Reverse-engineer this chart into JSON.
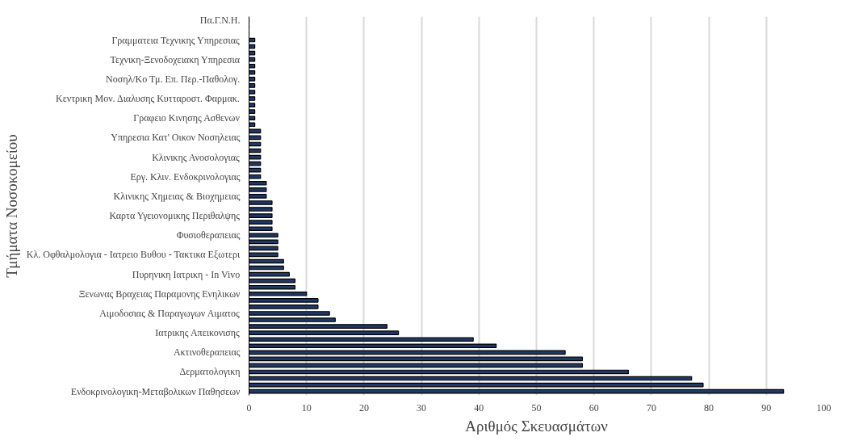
{
  "chart_data": {
    "type": "bar",
    "orientation": "horizontal",
    "xlabel": "Αριθμός Σκευασμάτων",
    "ylabel": "Τμήματα Νοσοκομείου",
    "categories": [
      "Πα.Γ.Ν.Η.",
      null,
      null,
      "Γραμματεια Τεχνικης Υπηρεσιας",
      null,
      null,
      "Τεχνικη-Ξενοδοχειακη Υπηρεσια",
      null,
      null,
      "Νοσηλ/Κο Τμ. Επ. Περ.-Παθολογ.",
      null,
      null,
      "Κεντρικη Μον. Διαλυσης Κυτταροστ. Φαρμακ.",
      null,
      null,
      "Γραφειο Κινησης Ασθενων",
      null,
      null,
      "Υπηρεσια Κατ' Οικον Νοσηλειας",
      null,
      null,
      "Κλινικης Ανοσολογιας",
      null,
      null,
      "Εργ. Κλιν. Ενδοκρινολογιας",
      null,
      null,
      "Κλινικης Χημειας & Βιοχημειας",
      null,
      null,
      "Καρτα Υγειονομικης Περιθαλψης",
      null,
      null,
      "Φυσιοθεραπειας",
      null,
      null,
      "Κλ. Οφθαλμολογια - Ιατρειο Βυθου - Τακτικα Εξωτερι",
      null,
      null,
      "Πυρηνικη Ιατρικη - In Vivo",
      null,
      null,
      "Ξενωνας Βραχειας Παραμονης Ενηλικων",
      null,
      null,
      "Αιμοδοσιας & Παραγωγων Αιματος",
      null,
      null,
      "Ιατρικης Απεικονισης",
      null,
      null,
      "Ακτινοθεραπειας",
      null,
      null,
      "Δερματολογικη",
      null,
      null,
      "Ενδοκρινολογικη-Μεταβολικων Παθησεων"
    ],
    "values": [
      0,
      0,
      0,
      1,
      1,
      1,
      1,
      1,
      1,
      1,
      1,
      1,
      1,
      1,
      1,
      1,
      1,
      2,
      2,
      2,
      2,
      2,
      2,
      2,
      2,
      3,
      3,
      3,
      4,
      4,
      4,
      4,
      4,
      5,
      5,
      5,
      5,
      6,
      6,
      7,
      8,
      8,
      10,
      12,
      12,
      14,
      15,
      24,
      26,
      39,
      43,
      55,
      58,
      58,
      66,
      77,
      79,
      93
    ],
    "color": "#1f3864",
    "xlim": [
      0,
      100
    ],
    "xticks": [
      0,
      10,
      20,
      30,
      40,
      50,
      60,
      70,
      80,
      90,
      100
    ],
    "grid": "x"
  }
}
